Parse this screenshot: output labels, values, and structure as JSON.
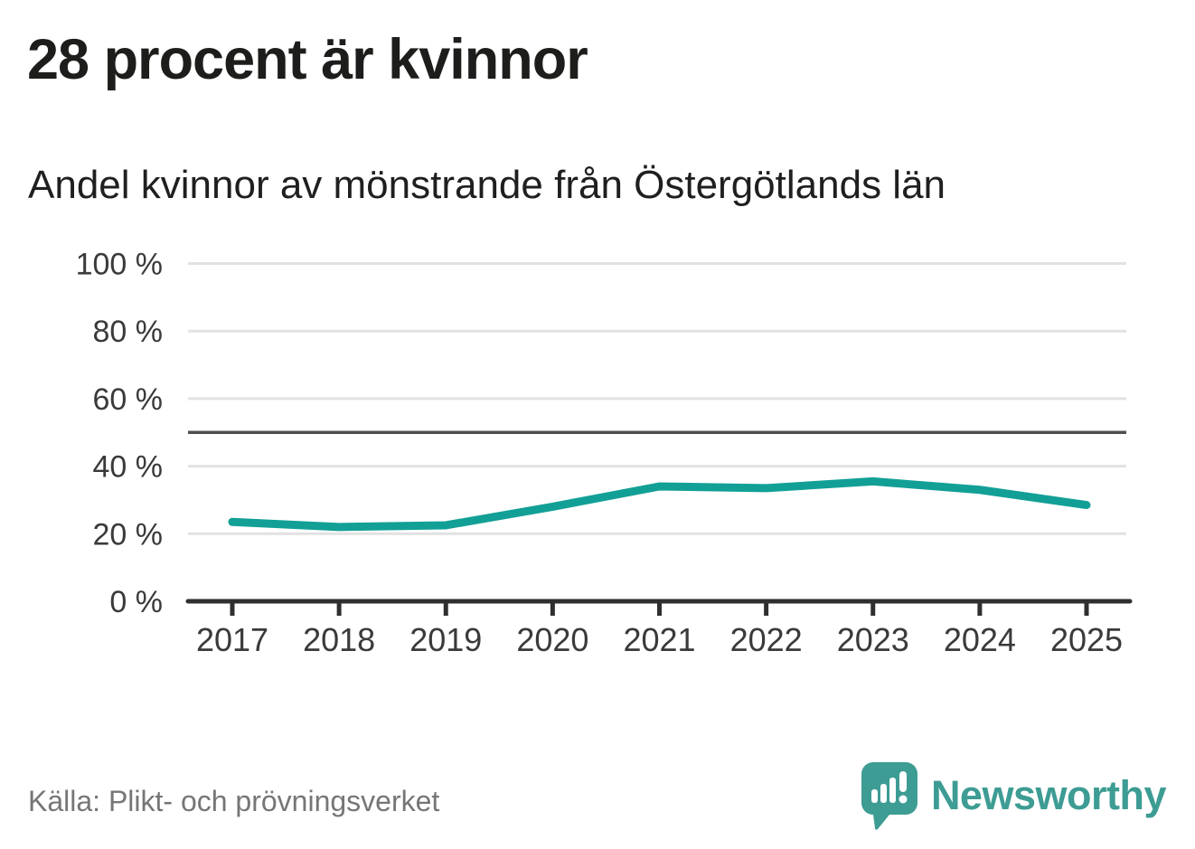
{
  "header": {
    "title": "28 procent är kvinnor",
    "subtitle": "Andel kvinnor av mönstrande från Östergötlands län"
  },
  "footer": {
    "source": "Källa: Plikt- och prövningsverket",
    "brand": "Newsworthy"
  },
  "colors": {
    "line": "#12a096",
    "brand_teal": "#3d9c93",
    "grid": "#e2e2e2",
    "reference": "#4f4f4f",
    "axis": "#2f2f2f",
    "tick_label": "#3a3a3a"
  },
  "chart_data": {
    "type": "line",
    "title": "28 procent är kvinnor",
    "subtitle": "Andel kvinnor av mönstrande från Östergötlands län",
    "x": [
      2017,
      2018,
      2019,
      2020,
      2021,
      2022,
      2023,
      2024,
      2025
    ],
    "series": [
      {
        "name": "Andel kvinnor av mönstrande",
        "values": [
          23.5,
          22,
          22.5,
          28,
          34,
          33.5,
          35.5,
          33,
          28.5
        ]
      }
    ],
    "ylim": [
      0,
      100
    ],
    "yticks": [
      0,
      20,
      40,
      60,
      80,
      100
    ],
    "ytick_suffix": " %",
    "reference_line": 50,
    "grid": true,
    "legend_position": "none",
    "xlabel": "",
    "ylabel": ""
  }
}
